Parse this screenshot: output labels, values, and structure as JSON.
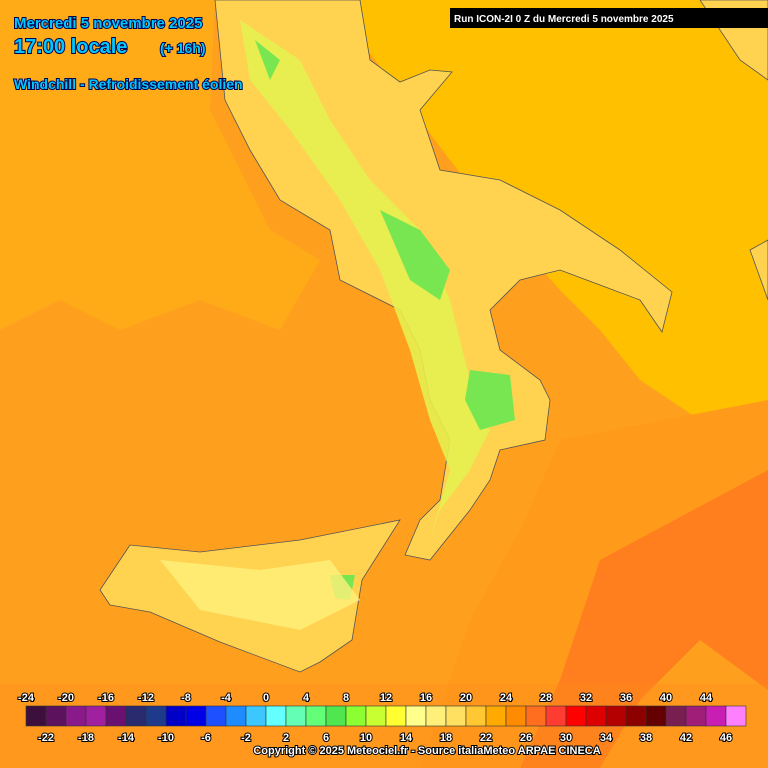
{
  "header": {
    "date": "Mercredi 5 novembre 2025",
    "time": "17:00 locale",
    "offset": "(+ 16h)",
    "parameter": "Windchill - Refroidissement éolien",
    "run": "Run ICON-2I 0 Z du Mercredi 5 novembre 2025"
  },
  "legend": {
    "ticks": [
      -24,
      -22,
      -20,
      -18,
      -16,
      -14,
      -12,
      -10,
      -8,
      -6,
      -4,
      -2,
      0,
      2,
      4,
      6,
      8,
      10,
      12,
      14,
      16,
      18,
      20,
      22,
      24,
      26,
      28,
      30,
      32,
      34,
      36,
      38,
      40,
      42,
      44,
      46
    ],
    "colors": [
      "#3c0f3c",
      "#5c125c",
      "#8a1a8a",
      "#a020a0",
      "#6a1070",
      "#2a2a6e",
      "#1e3a8a",
      "#0000c8",
      "#0000e6",
      "#1e50ff",
      "#1e8cff",
      "#3cc8ff",
      "#64ffff",
      "#64ffb4",
      "#64ff78",
      "#50e650",
      "#8cff32",
      "#c8ff32",
      "#ffff32",
      "#ffff8c",
      "#fff07a",
      "#ffe060",
      "#ffc832",
      "#ffaa00",
      "#ff8c00",
      "#ff6e1e",
      "#ff3c32",
      "#ff0000",
      "#dc0000",
      "#b40000",
      "#8c0000",
      "#640000",
      "#781e50",
      "#a01e78",
      "#c81eb4",
      "#ff80ff"
    ]
  },
  "footer": {
    "copyright": "Copyright © 2025 Meteociel.fr - Source italiaMeteo ARPAE CINECA"
  }
}
